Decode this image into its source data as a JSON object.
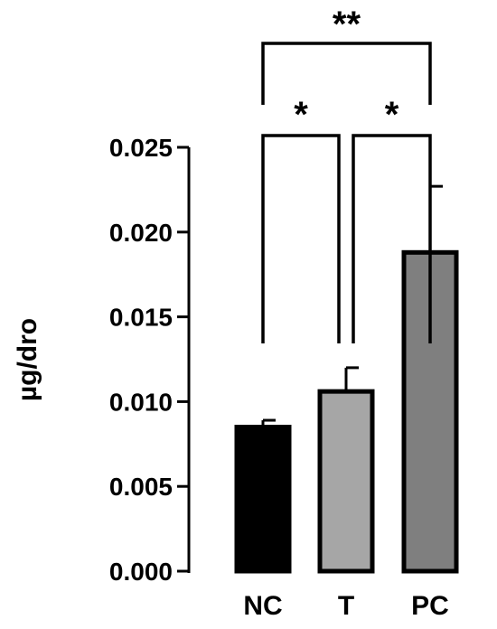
{
  "chart_data": {
    "type": "bar",
    "categories": [
      "NC",
      "T",
      "PC"
    ],
    "values": [
      0.0085,
      0.0106,
      0.0188
    ],
    "errors": [
      0.0004,
      0.0014,
      0.0039
    ],
    "colors": [
      "#000000",
      "#a6a6a6",
      "#7f7f7f"
    ],
    "ylabel": "µg/dro",
    "xlabel": "",
    "title": "",
    "ylim": [
      0,
      0.025
    ],
    "yticks": [
      0,
      0.005,
      0.01,
      0.015,
      0.02,
      0.025
    ],
    "ytick_labels": [
      "0.000",
      "0.005",
      "0.010",
      "0.015",
      "0.020",
      "0.025"
    ],
    "grid": false,
    "significance": [
      {
        "from": "NC",
        "to": "T",
        "label": "*"
      },
      {
        "from": "T",
        "to": "PC",
        "label": "*"
      },
      {
        "from": "NC",
        "to": "PC",
        "label": "**"
      }
    ]
  }
}
